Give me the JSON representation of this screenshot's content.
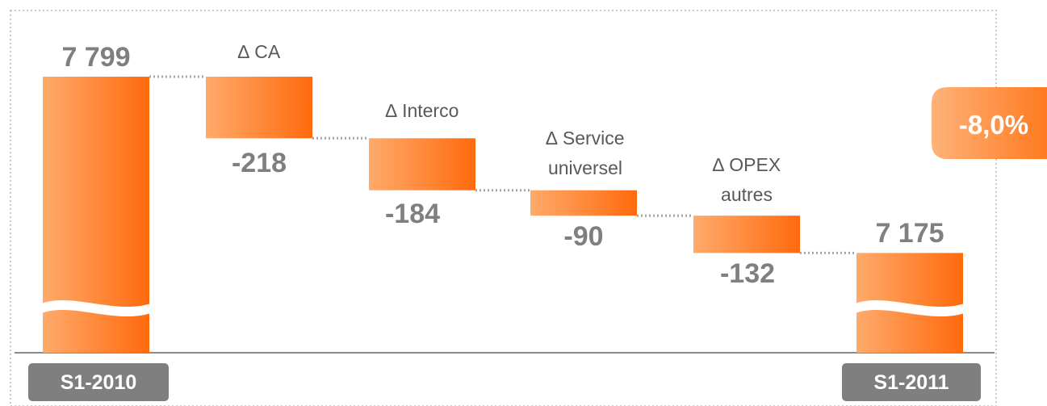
{
  "chart_data": {
    "type": "bar",
    "subtype": "waterfall",
    "categories": [
      "S1-2010",
      "∆ CA",
      "∆ Interco",
      "∆ Service universel",
      "∆ OPEX autres",
      "S1-2011"
    ],
    "category_lines": [
      [
        "S1-2010"
      ],
      [
        "∆ CA"
      ],
      [
        "∆ Interco"
      ],
      [
        "∆ Service",
        "universel"
      ],
      [
        "∆ OPEX",
        "autres"
      ],
      [
        "S1-2011"
      ]
    ],
    "values": [
      7799,
      -218,
      -184,
      -90,
      -132,
      7175
    ],
    "value_labels": [
      "7 799",
      "-218",
      "-184",
      "-90",
      "-132",
      "7 175"
    ],
    "bar_kinds": [
      "total",
      "delta",
      "delta",
      "delta",
      "delta",
      "total"
    ],
    "axis_breaks": true,
    "change_label": "-8,0%",
    "colors": {
      "bar_light": "#ffaa6b",
      "bar_dark": "#ff6a0d",
      "axis_label_bg": "#7f7f7f",
      "badge": "#ff8a3a"
    }
  }
}
